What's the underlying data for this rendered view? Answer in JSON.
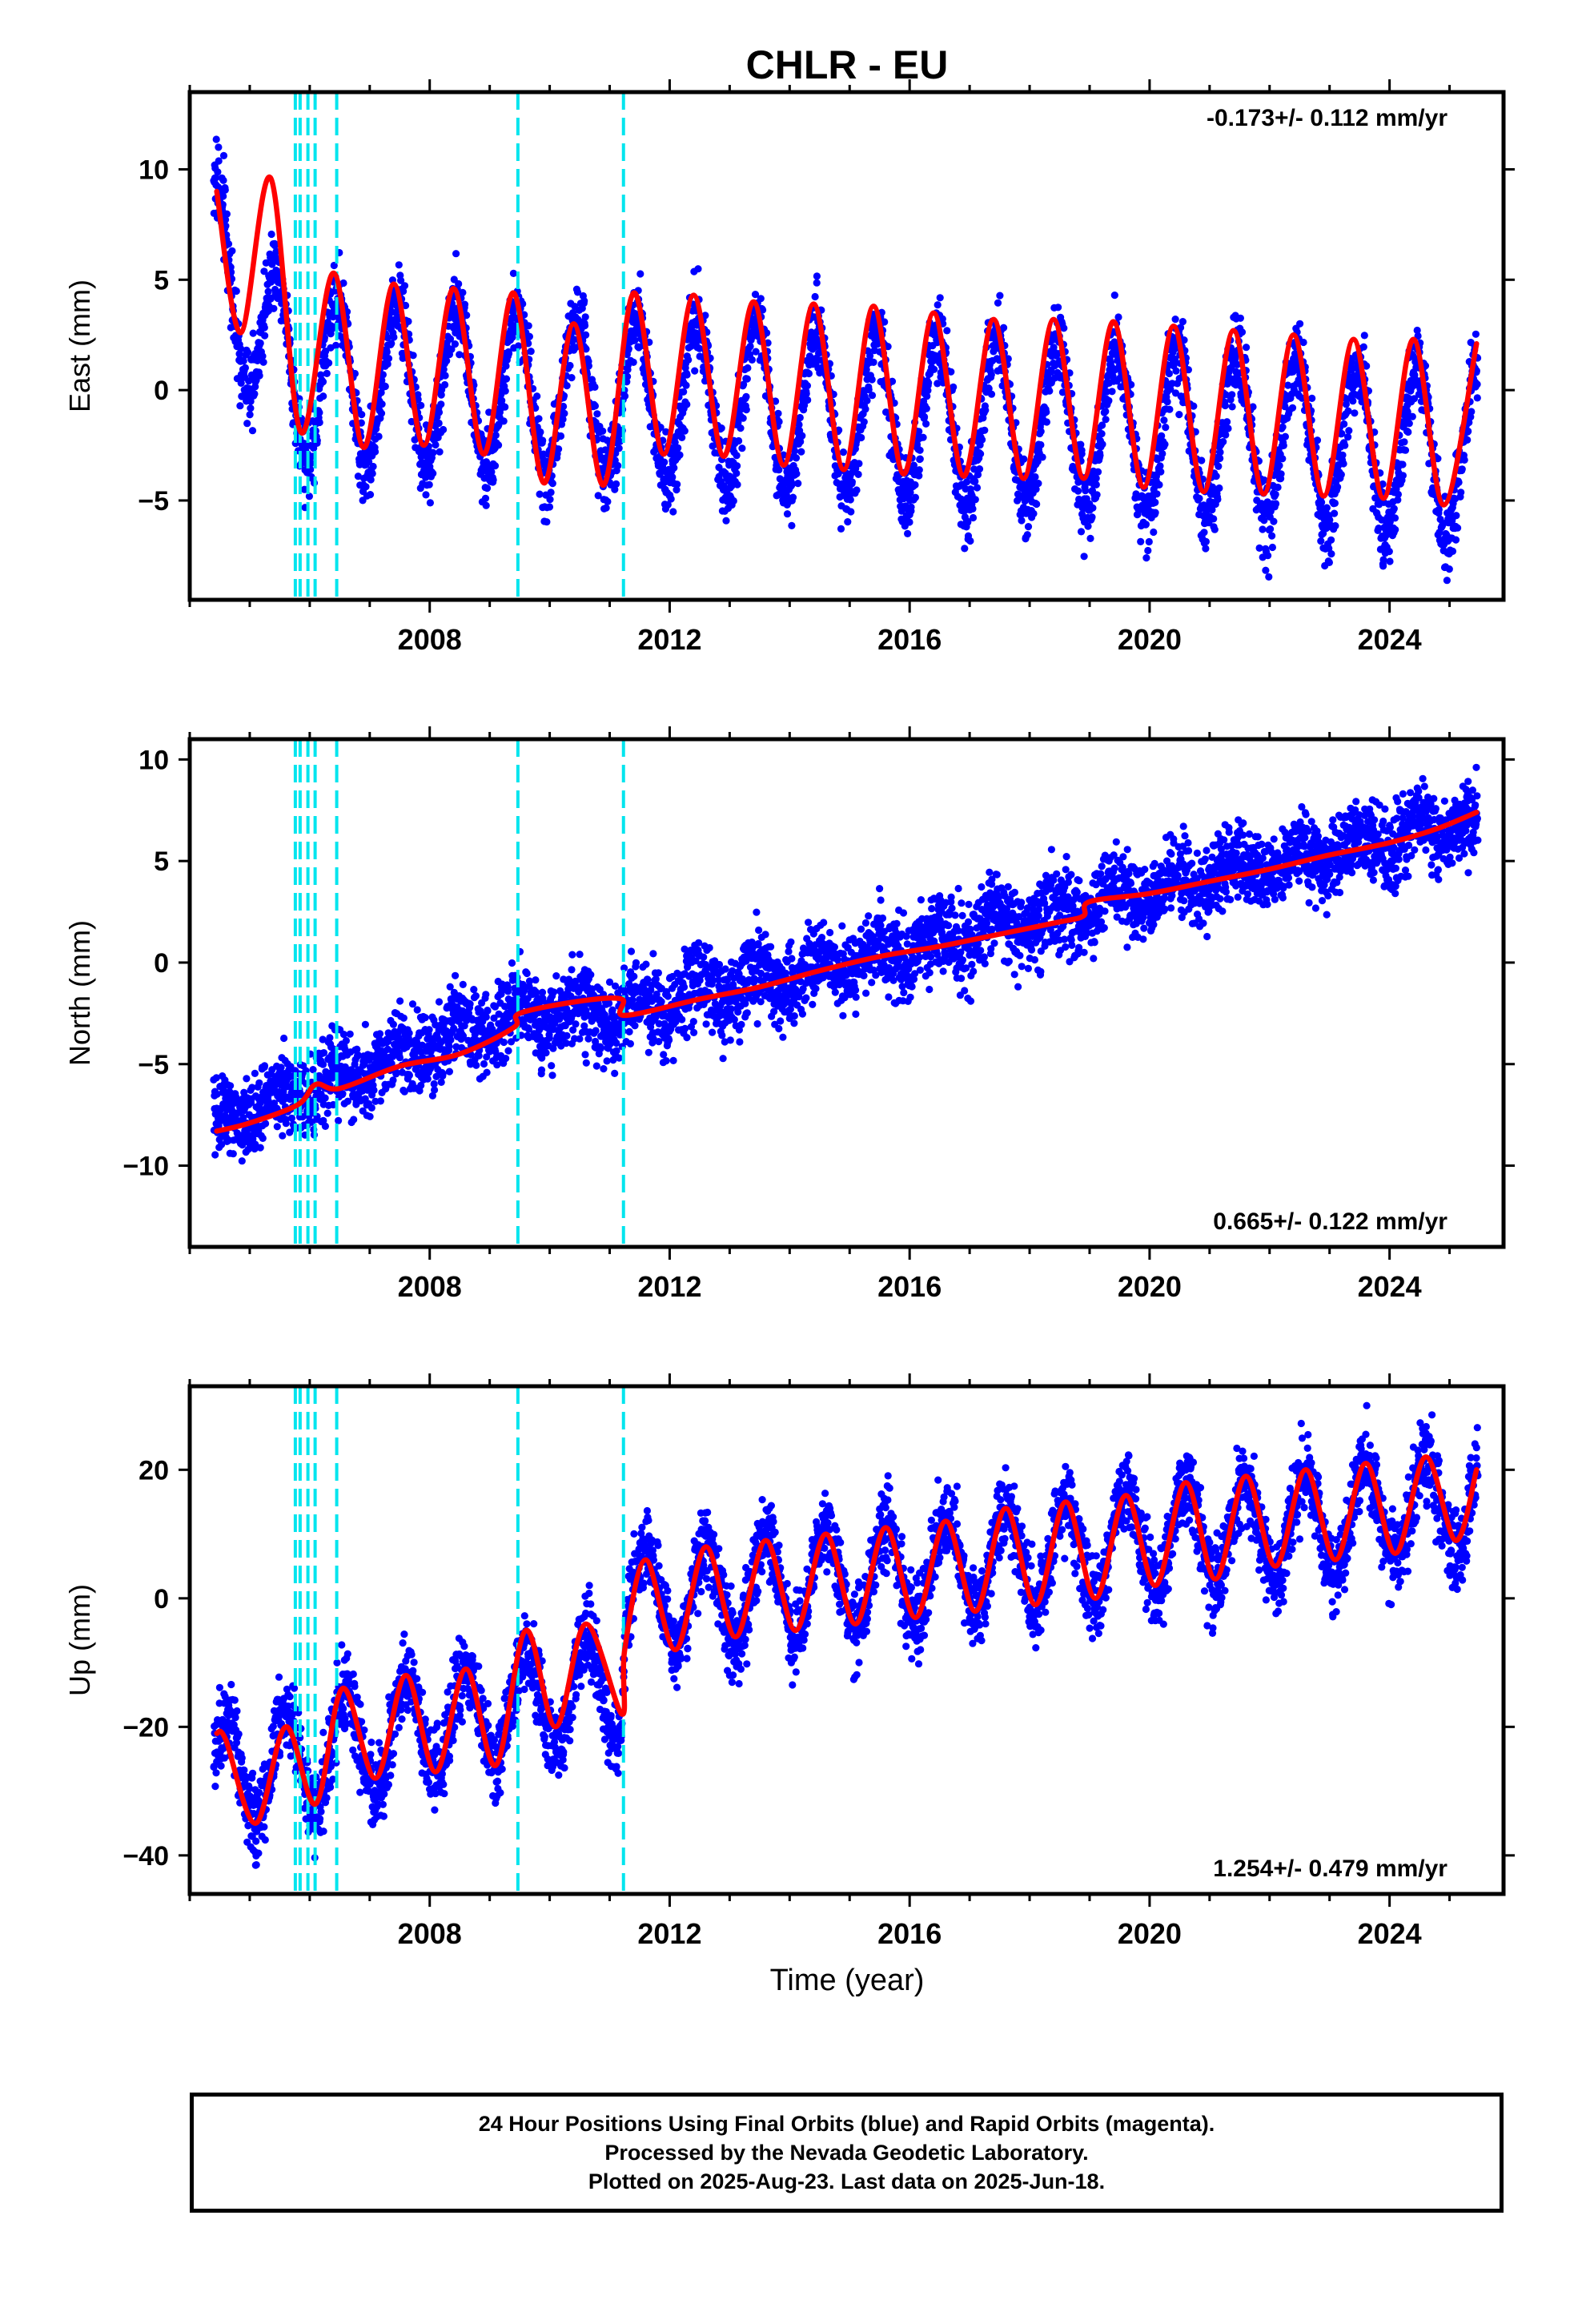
{
  "title": "CHLR - EU",
  "xlabel": "Time (year)",
  "footer": {
    "line1": "24 Hour Positions Using Final Orbits (blue) and Rapid Orbits (magenta).",
    "line2": "Processed by the Nevada Geodetic Laboratory.",
    "line3": "Plotted on 2025-Aug-23. Last data on 2025-Jun-18."
  },
  "colors": {
    "final_orbits": "#0000ff",
    "rapid_orbits": "#ff00ff",
    "model_fit": "#ff0000",
    "equipment_change_lines": "#00e5ee",
    "frame": "#000000"
  },
  "chart_data": [
    {
      "type": "scatter",
      "panel": "east",
      "ylabel": "East (mm)",
      "rate_label": "-0.173+/- 0.112 mm/yr",
      "rate_label_position": "top-right",
      "xlim": [
        2004.0,
        2025.9
      ],
      "ylim": [
        -9.5,
        13.5
      ],
      "x_ticks": [
        2008,
        2012,
        2016,
        2020,
        2024
      ],
      "y_ticks": [
        -5,
        0,
        5,
        10
      ],
      "vlines": [
        2005.76,
        2005.84,
        2005.97,
        2006.09,
        2006.45,
        2009.47,
        2011.23
      ],
      "series": [
        {
          "name": "Final Orbits",
          "marker": "dot",
          "color": "#0000ff",
          "trend": {
            "x_start": 2004.4,
            "x_end": 2025.47,
            "offsets": [
              [
                2004.4,
                5.8
              ],
              [
                2005.8,
                0.8
              ],
              [
                2011.2,
                0.8
              ]
            ],
            "rate": -0.173,
            "annual_amplitude": 3.7,
            "phase_peak": 0.45,
            "scatter_sd": 1.3
          }
        },
        {
          "name": "Model fit",
          "marker": "line",
          "color": "#ff0000",
          "anchors": [
            [
              2004.45,
              9.0
            ],
            [
              2004.85,
              2.6
            ],
            [
              2005.35,
              9.6
            ],
            [
              2005.85,
              -1.9
            ],
            [
              2006.4,
              5.3
            ],
            [
              2006.9,
              -2.6
            ],
            [
              2007.4,
              4.8
            ],
            [
              2007.9,
              -2.5
            ],
            [
              2008.4,
              4.6
            ],
            [
              2008.9,
              -2.9
            ],
            [
              2009.4,
              4.4
            ],
            [
              2009.9,
              -4.2
            ],
            [
              2010.4,
              3.0
            ],
            [
              2010.9,
              -4.3
            ],
            [
              2011.4,
              4.4
            ],
            [
              2011.9,
              -2.9
            ],
            [
              2012.4,
              4.3
            ],
            [
              2012.9,
              -3.0
            ],
            [
              2013.4,
              4.0
            ],
            [
              2013.9,
              -3.4
            ],
            [
              2014.4,
              3.9
            ],
            [
              2014.9,
              -3.6
            ],
            [
              2015.4,
              3.8
            ],
            [
              2015.9,
              -3.8
            ],
            [
              2016.4,
              3.5
            ],
            [
              2016.9,
              -3.9
            ],
            [
              2017.4,
              3.2
            ],
            [
              2017.9,
              -4.0
            ],
            [
              2018.4,
              3.2
            ],
            [
              2018.9,
              -4.0
            ],
            [
              2019.4,
              3.1
            ],
            [
              2019.9,
              -4.4
            ],
            [
              2020.4,
              2.9
            ],
            [
              2020.9,
              -4.6
            ],
            [
              2021.4,
              2.7
            ],
            [
              2021.9,
              -4.7
            ],
            [
              2022.4,
              2.5
            ],
            [
              2022.9,
              -4.8
            ],
            [
              2023.4,
              2.3
            ],
            [
              2023.9,
              -4.9
            ],
            [
              2024.4,
              2.3
            ],
            [
              2024.9,
              -5.2
            ],
            [
              2025.45,
              2.1
            ]
          ]
        }
      ]
    },
    {
      "type": "scatter",
      "panel": "north",
      "ylabel": "North (mm)",
      "rate_label": "0.665+/- 0.122 mm/yr",
      "rate_label_position": "bottom-right",
      "xlim": [
        2004.0,
        2025.9
      ],
      "ylim": [
        -14.0,
        11.0
      ],
      "x_ticks": [
        2008,
        2012,
        2016,
        2020,
        2024
      ],
      "y_ticks": [
        -10,
        -5,
        0,
        5,
        10
      ],
      "vlines": [
        2005.76,
        2005.84,
        2005.97,
        2006.09,
        2006.45,
        2009.47,
        2011.23
      ],
      "series": [
        {
          "name": "Final Orbits",
          "marker": "dot",
          "color": "#0000ff",
          "trend": {
            "x_start": 2004.4,
            "x_end": 2025.47,
            "offsets": [
              [
                2004.4,
                -8.0
              ],
              [
                2009.4,
                -2.5
              ],
              [
                2011.2,
                -2.5
              ],
              [
                2015.0,
                0.0
              ],
              [
                2020.0,
                3.5
              ],
              [
                2025.4,
                7.0
              ]
            ],
            "rate": 0.0,
            "annual_amplitude": 0.6,
            "phase_peak": 0.45,
            "scatter_sd": 1.4
          }
        },
        {
          "name": "Model fit",
          "marker": "line",
          "color": "#ff0000",
          "anchors": [
            [
              2004.45,
              -8.3
            ],
            [
              2005.0,
              -7.9
            ],
            [
              2005.8,
              -7.0
            ],
            [
              2006.1,
              -6.0
            ],
            [
              2006.5,
              -6.2
            ],
            [
              2007.5,
              -5.1
            ],
            [
              2008.5,
              -4.5
            ],
            [
              2009.4,
              -3.2
            ],
            [
              2009.5,
              -2.5
            ],
            [
              2010.5,
              -1.9
            ],
            [
              2011.2,
              -1.8
            ],
            [
              2011.25,
              -2.6
            ],
            [
              2012.5,
              -1.8
            ],
            [
              2013.5,
              -1.2
            ],
            [
              2014.5,
              -0.4
            ],
            [
              2015.5,
              0.3
            ],
            [
              2016.5,
              0.8
            ],
            [
              2017.5,
              1.4
            ],
            [
              2018.5,
              2.0
            ],
            [
              2018.9,
              2.3
            ],
            [
              2019.0,
              3.0
            ],
            [
              2020.0,
              3.4
            ],
            [
              2021.0,
              4.0
            ],
            [
              2022.0,
              4.6
            ],
            [
              2023.0,
              5.3
            ],
            [
              2024.0,
              5.9
            ],
            [
              2024.8,
              6.6
            ],
            [
              2025.45,
              7.4
            ]
          ]
        }
      ]
    },
    {
      "type": "scatter",
      "panel": "up",
      "ylabel": "Up (mm)",
      "rate_label": "1.254+/- 0.479 mm/yr",
      "rate_label_position": "bottom-right",
      "xlim": [
        2004.0,
        2025.9
      ],
      "ylim": [
        -46.0,
        33.0
      ],
      "x_ticks": [
        2008,
        2012,
        2016,
        2020,
        2024
      ],
      "y_ticks": [
        -40,
        -20,
        0,
        20
      ],
      "vlines": [
        2005.76,
        2005.84,
        2005.97,
        2006.09,
        2006.45,
        2009.47,
        2011.23
      ],
      "series": [
        {
          "name": "Final Orbits",
          "marker": "dot",
          "color": "#0000ff",
          "trend": {
            "x_start": 2004.4,
            "x_end": 2025.47,
            "offsets": [
              [
                2004.4,
                -28.0
              ],
              [
                2011.2,
                -13.0
              ],
              [
                2011.25,
                -1.0
              ],
              [
                2025.4,
                15.0
              ]
            ],
            "rate": 0.0,
            "annual_amplitude": 8.0,
            "phase_peak": 0.6,
            "scatter_sd": 4.5
          }
        },
        {
          "name": "Model fit",
          "marker": "line",
          "color": "#ff0000",
          "anchors": [
            [
              2004.45,
              -21.0
            ],
            [
              2004.6,
              -22.0
            ],
            [
              2005.1,
              -35.0
            ],
            [
              2005.6,
              -20.0
            ],
            [
              2006.1,
              -32.0
            ],
            [
              2006.55,
              -14.0
            ],
            [
              2007.1,
              -28.0
            ],
            [
              2007.6,
              -12.0
            ],
            [
              2008.1,
              -27.0
            ],
            [
              2008.6,
              -11.0
            ],
            [
              2009.1,
              -26.0
            ],
            [
              2009.6,
              -5.0
            ],
            [
              2010.1,
              -20.0
            ],
            [
              2010.6,
              -4.0
            ],
            [
              2011.2,
              -18.0
            ],
            [
              2011.25,
              -8.0
            ],
            [
              2011.6,
              6.0
            ],
            [
              2012.1,
              -8.0
            ],
            [
              2012.6,
              8.0
            ],
            [
              2013.1,
              -6.0
            ],
            [
              2013.6,
              9.0
            ],
            [
              2014.1,
              -5.0
            ],
            [
              2014.6,
              10.0
            ],
            [
              2015.1,
              -4.0
            ],
            [
              2015.6,
              11.0
            ],
            [
              2016.1,
              -3.0
            ],
            [
              2016.6,
              12.0
            ],
            [
              2017.1,
              -2.0
            ],
            [
              2017.6,
              14.0
            ],
            [
              2018.1,
              -1.0
            ],
            [
              2018.6,
              15.0
            ],
            [
              2019.1,
              0.0
            ],
            [
              2019.6,
              16.0
            ],
            [
              2020.1,
              2.0
            ],
            [
              2020.6,
              18.0
            ],
            [
              2021.1,
              3.0
            ],
            [
              2021.6,
              19.0
            ],
            [
              2022.1,
              5.0
            ],
            [
              2022.6,
              20.0
            ],
            [
              2023.1,
              6.0
            ],
            [
              2023.6,
              21.0
            ],
            [
              2024.1,
              7.0
            ],
            [
              2024.6,
              22.0
            ],
            [
              2025.1,
              9.0
            ],
            [
              2025.45,
              20.0
            ]
          ]
        }
      ]
    }
  ]
}
